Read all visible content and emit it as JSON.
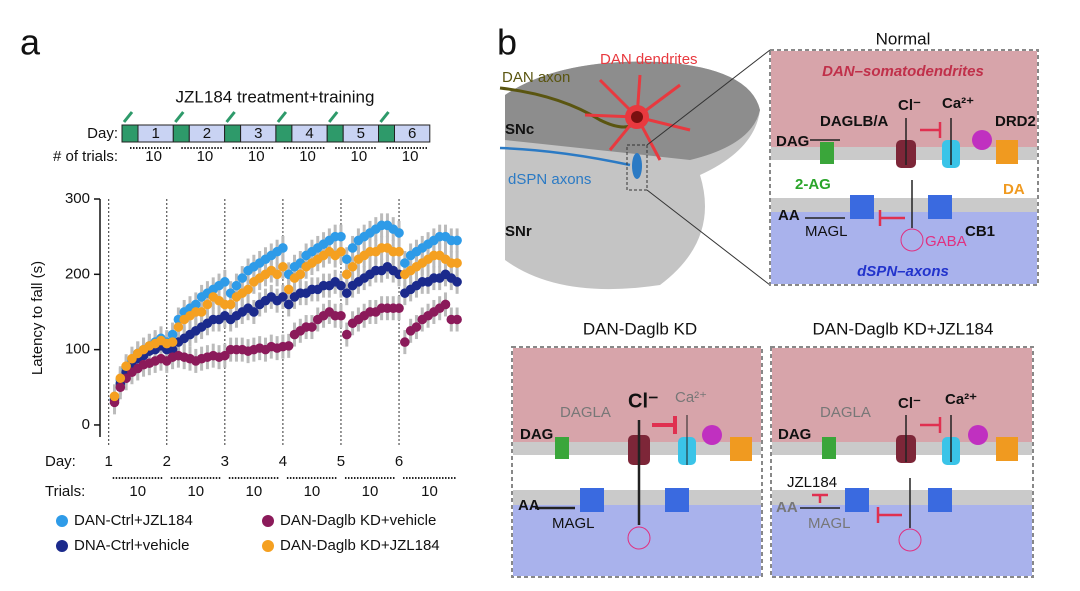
{
  "panel_labels": [
    "a",
    "b"
  ],
  "schedule": {
    "title": "JZL184 treatment+training",
    "day_label": "Day:",
    "days": [
      "1",
      "2",
      "3",
      "4",
      "5",
      "6"
    ],
    "trials_label": "# of trials:",
    "trials": [
      "10",
      "10",
      "10",
      "10",
      "10",
      "10"
    ]
  },
  "chart_data": {
    "type": "scatter",
    "y_label": "Latency to fall (s)",
    "x": [
      1,
      2,
      3,
      4,
      5,
      6,
      7,
      8,
      9,
      10,
      11,
      12,
      13,
      14,
      15,
      16,
      17,
      18,
      19,
      20,
      21,
      22,
      23,
      24,
      25,
      26,
      27,
      28,
      29,
      30,
      31,
      32,
      33,
      34,
      35,
      36,
      37,
      38,
      39,
      40,
      41,
      42,
      43,
      44,
      45,
      46,
      47,
      48,
      49,
      50,
      51,
      52,
      53,
      54,
      55,
      56,
      57,
      58,
      59,
      60
    ],
    "xlim": [
      -1.5,
      60.5
    ],
    "xticks": [
      {
        "value": 0,
        "label": "1"
      },
      {
        "value": 10,
        "label": "2"
      },
      {
        "value": 20,
        "label": "3"
      },
      {
        "value": 30,
        "label": "4"
      },
      {
        "value": 40,
        "label": "5"
      },
      {
        "value": 50,
        "label": "6"
      }
    ],
    "ylim": [
      -16,
      300
    ],
    "yticks": [
      0,
      100,
      200,
      300
    ],
    "day_label": "Day:",
    "trials_label": "Trials:",
    "trial_counts": [
      "10",
      "10",
      "10",
      "10",
      "10",
      "10"
    ],
    "series": [
      {
        "name": "DAN-Ctrl+JZL184",
        "color": "#2e9be8",
        "values": [
          35,
          60,
          75,
          85,
          95,
          100,
          105,
          110,
          115,
          110,
          120,
          140,
          150,
          155,
          160,
          170,
          175,
          180,
          185,
          190,
          175,
          185,
          195,
          205,
          210,
          215,
          220,
          225,
          230,
          235,
          200,
          210,
          215,
          225,
          230,
          235,
          240,
          245,
          250,
          250,
          220,
          235,
          245,
          250,
          255,
          260,
          265,
          265,
          260,
          255,
          215,
          225,
          230,
          235,
          240,
          245,
          250,
          250,
          245,
          245
        ]
      },
      {
        "name": "DNA-Ctrl+vehicle",
        "color": "#1b2a8c",
        "values": [
          33,
          55,
          70,
          80,
          88,
          92,
          98,
          100,
          105,
          100,
          100,
          110,
          115,
          120,
          125,
          130,
          135,
          140,
          140,
          145,
          140,
          145,
          150,
          155,
          150,
          160,
          165,
          170,
          165,
          170,
          160,
          170,
          175,
          175,
          180,
          180,
          185,
          185,
          190,
          185,
          175,
          185,
          190,
          195,
          200,
          205,
          205,
          210,
          205,
          200,
          175,
          180,
          185,
          190,
          190,
          195,
          195,
          200,
          195,
          190
        ]
      },
      {
        "name": "DAN-Daglb KD+vehicle",
        "color": "#8b1a5a",
        "values": [
          30,
          50,
          62,
          70,
          75,
          80,
          82,
          85,
          88,
          85,
          90,
          92,
          90,
          88,
          85,
          88,
          90,
          92,
          90,
          92,
          100,
          100,
          100,
          98,
          100,
          102,
          100,
          104,
          102,
          104,
          105,
          120,
          125,
          130,
          130,
          140,
          145,
          150,
          145,
          145,
          120,
          135,
          140,
          145,
          150,
          150,
          155,
          155,
          155,
          155,
          110,
          125,
          130,
          140,
          145,
          150,
          155,
          160,
          140,
          140
        ]
      },
      {
        "name": "DAN-Daglb KD+JZL184",
        "color": "#f5a020",
        "values": [
          38,
          62,
          78,
          88,
          95,
          100,
          105,
          108,
          112,
          108,
          110,
          130,
          140,
          145,
          150,
          150,
          160,
          170,
          165,
          160,
          160,
          170,
          175,
          180,
          190,
          195,
          200,
          205,
          200,
          210,
          180,
          195,
          200,
          210,
          215,
          220,
          225,
          230,
          225,
          230,
          200,
          210,
          220,
          225,
          230,
          230,
          235,
          235,
          230,
          230,
          200,
          205,
          210,
          215,
          220,
          225,
          225,
          220,
          215,
          215
        ]
      }
    ]
  },
  "anatomy": {
    "labels": [
      "DAN axon",
      "DAN dendrites",
      "SNc",
      "dSPN axons",
      "SNr"
    ]
  },
  "normal": {
    "title": "Normal",
    "top": "DAN–somatodendrites",
    "bottom": "dSPN–axons",
    "labels": [
      "DAGLB/A",
      "DAG",
      "Cl⁻",
      "Ca²⁺",
      "DRD2",
      "2-AG",
      "DA",
      "AA",
      "MAGL",
      "CB1",
      "GABA"
    ]
  },
  "kd": {
    "title": "DAN-Daglb KD",
    "labels": [
      "DAGLA",
      "DAG",
      "Cl⁻",
      "Ca²⁺",
      "AA",
      "MAGL"
    ]
  },
  "kd_jzl": {
    "title": "DAN-Daglb KD+JZL184",
    "labels": [
      "DAGLA",
      "DAG",
      "Cl⁻",
      "Ca²⁺",
      "JZL184",
      "AA",
      "MAGL"
    ]
  }
}
